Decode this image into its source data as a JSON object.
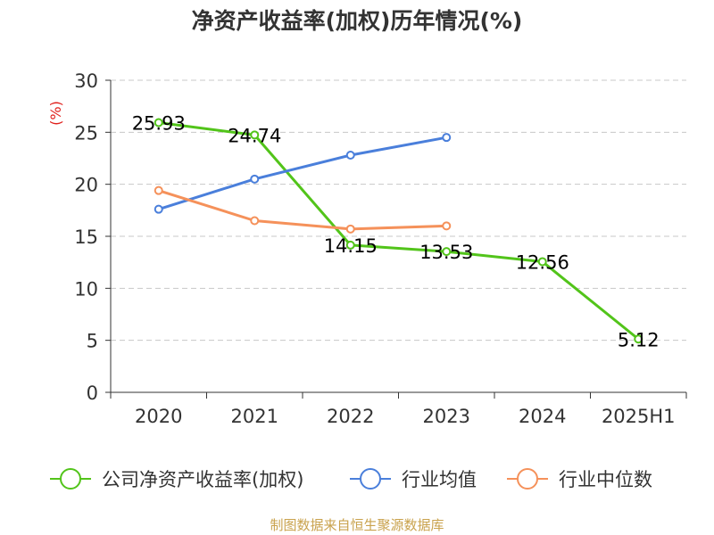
{
  "source": "制图数据来自恒生聚源数据库",
  "chart_data": {
    "type": "line",
    "title": "净资产收益率(加权)历年情况(%)",
    "ylabel": "(%)",
    "xlabel": "",
    "categories": [
      "2020",
      "2021",
      "2022",
      "2023",
      "2024",
      "2025H1"
    ],
    "ylim": [
      0,
      30
    ],
    "yticks": [
      0,
      5,
      10,
      15,
      20,
      25,
      30
    ],
    "grid": true,
    "legend_position": "bottom",
    "series": [
      {
        "name": "公司净资产收益率(加权)",
        "color": "#52c41a",
        "values": [
          25.93,
          24.74,
          14.15,
          13.53,
          12.56,
          5.12
        ],
        "labels": [
          "25.93",
          "24.74",
          "14.15",
          "13.53",
          "12.56",
          "5.12"
        ],
        "show_labels": true
      },
      {
        "name": "行业均值",
        "color": "#4a7fdb",
        "values": [
          17.6,
          20.5,
          22.8,
          24.5,
          null,
          null
        ],
        "show_labels": false
      },
      {
        "name": "行业中位数",
        "color": "#f5915a",
        "values": [
          19.4,
          16.5,
          15.7,
          16.0,
          null,
          null
        ],
        "show_labels": false
      }
    ]
  }
}
